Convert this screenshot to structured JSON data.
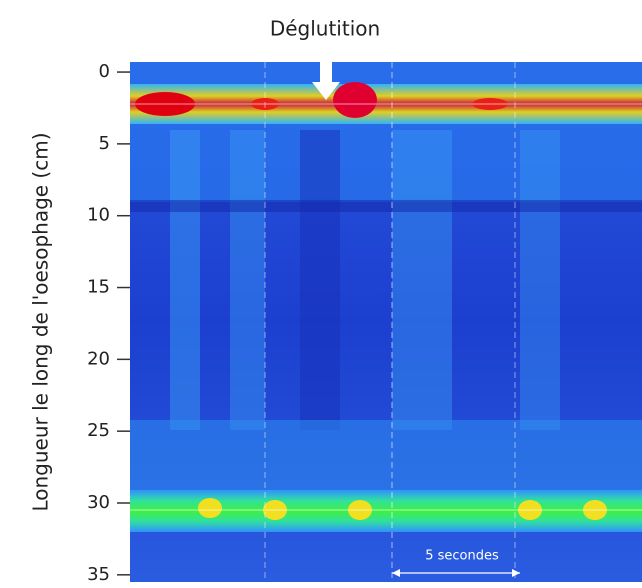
{
  "chart_data": {
    "type": "heatmap",
    "title": "Déglutition",
    "y_label": "Longueur le long de l'oesophage (cm)",
    "annotation": "5 secondes",
    "ylim": [
      -0.7,
      35.5
    ],
    "yticks": [
      0,
      5,
      10,
      15,
      20,
      25,
      30,
      35
    ],
    "invert_y": true
  }
}
